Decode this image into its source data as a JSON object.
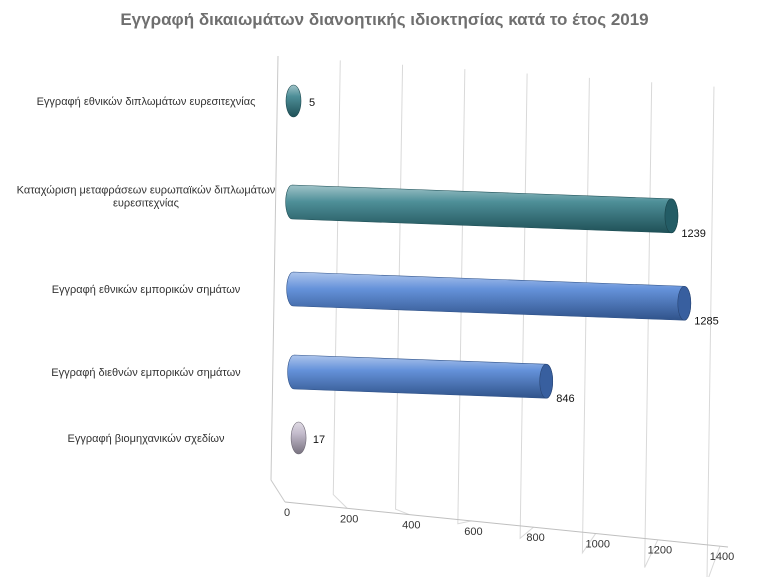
{
  "chart_data": {
    "type": "bar",
    "orientation": "horizontal",
    "title": "Εγγραφή δικαιωμάτων διανοητικής ιδιοκτησίας κατά το έτος 2019",
    "categories": [
      [
        "Εγγραφή εθνικών  διπλωμάτων ευρεσιτεχνίας"
      ],
      [
        "Καταχώριση μεταφράσεων ευρωπαϊκών  διπλωμάτων",
        "ευρεσιτεχνίας"
      ],
      [
        "Εγγραφή εθνικών  εμπορικών σημάτων"
      ],
      [
        "Εγγραφή διεθνών  εμπορικών σημάτων"
      ],
      [
        "Εγγραφή βιομηχανικών  σχεδίων"
      ]
    ],
    "values": [
      5,
      1239,
      1285,
      846,
      17
    ],
    "value_labels": [
      "5",
      "1239",
      "1285",
      "846",
      "17"
    ],
    "colors": [
      "#2f7b86",
      "#2f7b86",
      "#4a7fd4",
      "#4a7fd4",
      "#b9b0c4"
    ],
    "xlim": [
      0,
      1400
    ],
    "xticks": [
      "0",
      "200",
      "400",
      "600",
      "800",
      "1000",
      "1200",
      "1400"
    ],
    "grid": true,
    "legend": "none",
    "style": "3d-cylinder"
  }
}
